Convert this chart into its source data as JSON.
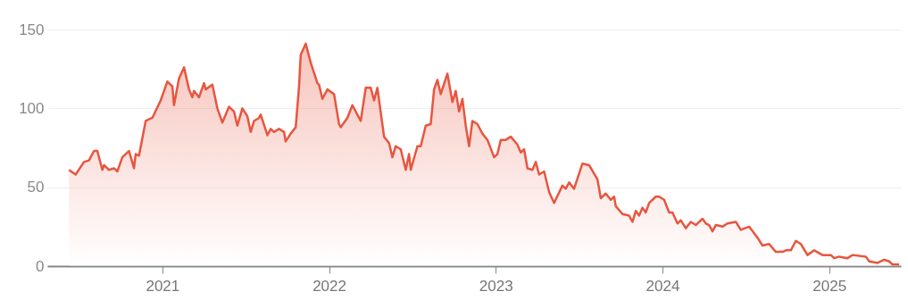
{
  "chart_data": {
    "type": "area",
    "color": "#e8553f",
    "x": [
      2020.44,
      2020.48,
      2020.53,
      2020.56,
      2020.59,
      2020.61,
      2020.64,
      2020.65,
      2020.68,
      2020.71,
      2020.73,
      2020.76,
      2020.8,
      2020.83,
      2020.84,
      2020.86,
      2020.9,
      2020.94,
      2020.99,
      2021.03,
      2021.06,
      2021.07,
      2021.1,
      2021.13,
      2021.16,
      2021.18,
      2021.19,
      2021.22,
      2021.25,
      2021.26,
      2021.3,
      2021.33,
      2021.36,
      2021.4,
      2021.43,
      2021.45,
      2021.48,
      2021.51,
      2021.53,
      2021.55,
      2021.58,
      2021.59,
      2021.63,
      2021.65,
      2021.67,
      2021.7,
      2021.73,
      2021.74,
      2021.77,
      2021.8,
      2021.82,
      2021.83,
      2021.86,
      2021.89,
      2021.93,
      2021.94,
      2021.96,
      2021.99,
      2022.03,
      2022.06,
      2022.07,
      2022.11,
      2022.14,
      2022.19,
      2022.22,
      2022.25,
      2022.27,
      2022.29,
      2022.33,
      2022.36,
      2022.38,
      2022.4,
      2022.43,
      2022.46,
      2022.48,
      2022.49,
      2022.53,
      2022.55,
      2022.58,
      2022.61,
      2022.63,
      2022.65,
      2022.67,
      2022.71,
      2022.74,
      2022.76,
      2022.78,
      2022.8,
      2022.82,
      2022.84,
      2022.86,
      2022.89,
      2022.92,
      2022.95,
      2022.99,
      2023.01,
      2023.03,
      2023.06,
      2023.09,
      2023.13,
      2023.15,
      2023.17,
      2023.19,
      2023.22,
      2023.24,
      2023.26,
      2023.29,
      2023.32,
      2023.35,
      2023.4,
      2023.42,
      2023.44,
      2023.47,
      2023.52,
      2023.56,
      2023.61,
      2023.63,
      2023.66,
      2023.69,
      2023.71,
      2023.72,
      2023.76,
      2023.8,
      2023.82,
      2023.84,
      2023.86,
      2023.88,
      2023.9,
      2023.92,
      2023.96,
      2023.98,
      2024.01,
      2024.04,
      2024.06,
      2024.09,
      2024.11,
      2024.14,
      2024.17,
      2024.2,
      2024.24,
      2024.26,
      2024.28,
      2024.3,
      2024.32,
      2024.36,
      2024.39,
      2024.44,
      2024.47,
      2024.52,
      2024.57,
      2024.6,
      2024.64,
      2024.68,
      2024.72,
      2024.74,
      2024.77,
      2024.8,
      2024.83,
      2024.87,
      2024.91,
      2024.96,
      2025.01,
      2025.03,
      2025.06,
      2025.11,
      2025.14,
      2025.22,
      2025.24,
      2025.29,
      2025.33,
      2025.36,
      2025.38,
      2025.42
    ],
    "values": [
      61,
      58,
      66,
      67,
      73,
      73,
      61,
      64,
      61,
      62,
      60,
      69,
      73,
      62,
      71,
      70,
      92,
      94,
      105,
      117,
      114,
      102,
      119,
      126,
      112,
      107,
      111,
      107,
      116,
      112,
      115,
      100,
      91,
      101,
      98,
      89,
      100,
      95,
      85,
      92,
      94,
      96,
      83,
      87,
      85,
      87,
      85,
      79,
      84,
      88,
      114,
      134,
      141,
      129,
      116,
      115,
      106,
      112,
      109,
      90,
      88,
      94,
      102,
      92,
      113,
      113,
      105,
      113,
      82,
      78,
      69,
      76,
      74,
      61,
      71,
      61,
      76,
      76,
      89,
      90,
      112,
      118,
      109,
      122,
      104,
      111,
      98,
      106,
      89,
      76,
      92,
      90,
      84,
      80,
      69,
      71,
      80,
      80,
      82,
      77,
      72,
      74,
      62,
      61,
      66,
      58,
      60,
      47,
      40,
      51,
      49,
      53,
      49,
      65,
      64,
      55,
      43,
      46,
      42,
      44,
      38,
      33,
      32,
      28,
      35,
      32,
      37,
      34,
      40,
      44,
      44,
      42,
      34,
      34,
      27,
      29,
      24,
      28,
      26,
      30,
      27,
      26,
      22,
      26,
      25,
      27,
      28,
      23,
      25,
      18,
      13,
      14,
      9,
      9,
      10,
      10,
      16,
      14,
      7,
      10,
      7,
      7,
      5,
      6,
      5,
      7,
      6,
      3,
      2,
      4,
      3,
      1,
      1
    ],
    "xlim": [
      2020.31,
      2025.43
    ],
    "xticks": [
      2021,
      2022,
      2023,
      2024,
      2025
    ],
    "ylim": [
      0,
      150
    ],
    "yticks": [
      0,
      50,
      100,
      150
    ],
    "grid": "y"
  }
}
